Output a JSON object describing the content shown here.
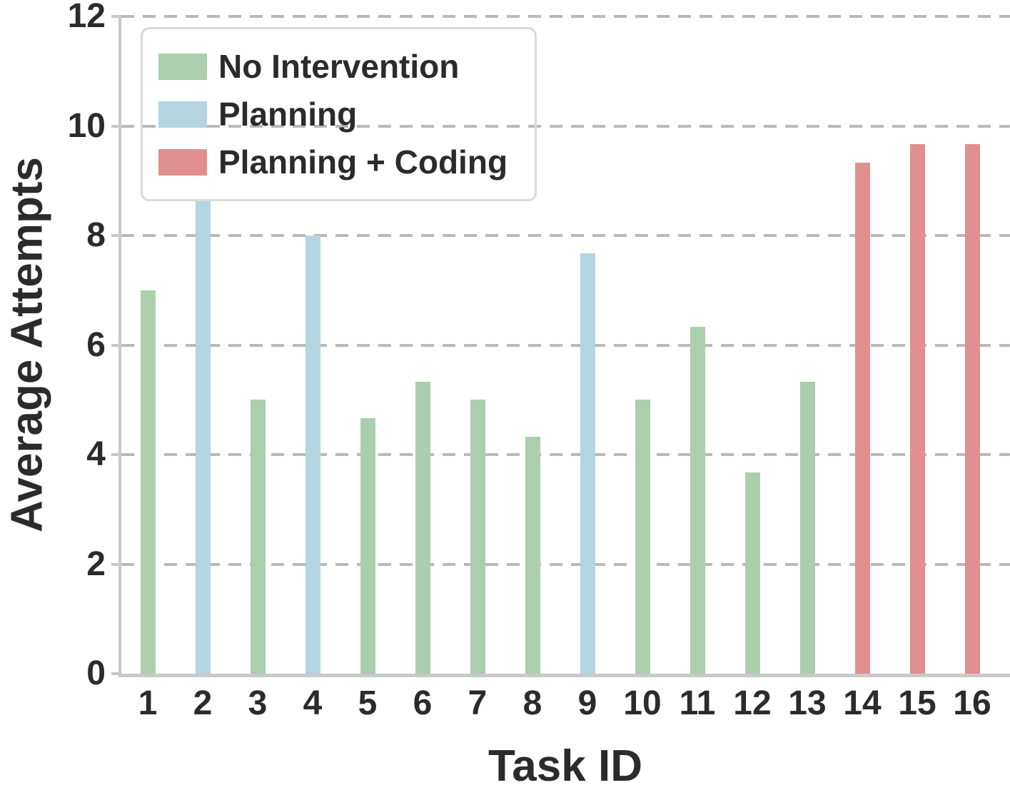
{
  "chart_data": {
    "type": "bar",
    "title": "",
    "xlabel": "Task ID",
    "ylabel": "Average Attempts",
    "ylim": [
      0,
      12
    ],
    "yticks": [
      0,
      2,
      4,
      6,
      8,
      10,
      12
    ],
    "grid": "horizontal dashed",
    "legend_position": "upper-left",
    "categories": [
      "1",
      "2",
      "3",
      "4",
      "5",
      "6",
      "7",
      "8",
      "9",
      "10",
      "11",
      "12",
      "13",
      "14",
      "15",
      "16"
    ],
    "groups": [
      {
        "id": "no_intervention",
        "label": "No Intervention",
        "color": "#abceac"
      },
      {
        "id": "planning",
        "label": "Planning",
        "color": "#b4d5e1"
      },
      {
        "id": "planning_coding",
        "label": "Planning + Coding",
        "color": "#e08e8f"
      }
    ],
    "bars": [
      {
        "task": "1",
        "value": 7.0,
        "group": "no_intervention"
      },
      {
        "task": "2",
        "value": 8.67,
        "group": "planning"
      },
      {
        "task": "3",
        "value": 5.0,
        "group": "no_intervention"
      },
      {
        "task": "4",
        "value": 8.0,
        "group": "planning"
      },
      {
        "task": "5",
        "value": 4.67,
        "group": "no_intervention"
      },
      {
        "task": "6",
        "value": 5.33,
        "group": "no_intervention"
      },
      {
        "task": "7",
        "value": 5.0,
        "group": "no_intervention"
      },
      {
        "task": "8",
        "value": 4.33,
        "group": "no_intervention"
      },
      {
        "task": "9",
        "value": 7.67,
        "group": "planning"
      },
      {
        "task": "10",
        "value": 5.0,
        "group": "no_intervention"
      },
      {
        "task": "11",
        "value": 6.33,
        "group": "no_intervention"
      },
      {
        "task": "12",
        "value": 3.67,
        "group": "no_intervention"
      },
      {
        "task": "13",
        "value": 5.33,
        "group": "no_intervention"
      },
      {
        "task": "14",
        "value": 9.33,
        "group": "planning_coding"
      },
      {
        "task": "15",
        "value": 9.67,
        "group": "planning_coding"
      },
      {
        "task": "16",
        "value": 9.67,
        "group": "planning_coding"
      }
    ]
  },
  "colors": {
    "axis": "#c9c9c9",
    "grid": "#b9b9b9",
    "text": "#2b2b2b",
    "legend_border": "#dadada",
    "background": "#ffffff"
  }
}
